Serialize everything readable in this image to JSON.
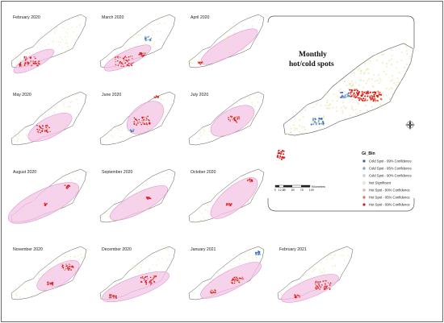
{
  "panels": [
    {
      "label": "February 2020"
    },
    {
      "label": "March 2020"
    },
    {
      "label": "April 2020"
    },
    {
      "label": "May 2020"
    },
    {
      "label": "June 2020"
    },
    {
      "label": "July 2020"
    },
    {
      "label": "August 2020"
    },
    {
      "label": "September 2020"
    },
    {
      "label": "October 2020"
    },
    {
      "label": "November 2020"
    },
    {
      "label": "December 2020"
    },
    {
      "label": "January 2021"
    },
    {
      "label": "February 2021"
    }
  ],
  "main_title": [
    "Monthly",
    "hot/cold spots"
  ],
  "legend": {
    "title": "Gi_Bin",
    "items": [
      {
        "label": "Cold Spot - 99% Confidence",
        "color": "#2c6bb5"
      },
      {
        "label": "Cold Spot - 95% Confidence",
        "color": "#7fa6d2"
      },
      {
        "label": "Cold Spot - 90% Confidence",
        "color": "#c5d6ea"
      },
      {
        "label": "Not Significant",
        "color": "#f2efc0"
      },
      {
        "label": "Hot Spot - 90% Confidence",
        "color": "#f0b8a8"
      },
      {
        "label": "Hot Spot - 95% Confidence",
        "color": "#e8734f"
      },
      {
        "label": "Hot Spot - 99% Confidence",
        "color": "#d7191c"
      }
    ]
  },
  "scale_bar": {
    "ticks": [
      "0",
      "12.5",
      "25",
      "50",
      "75",
      "100"
    ],
    "unit": "Kilometers"
  },
  "colors": {
    "ellipse_fill": "#f4c3e6",
    "ellipse_stroke": "#d58bc6",
    "region_outline": "#555555",
    "not_significant": "#e8e49e"
  }
}
